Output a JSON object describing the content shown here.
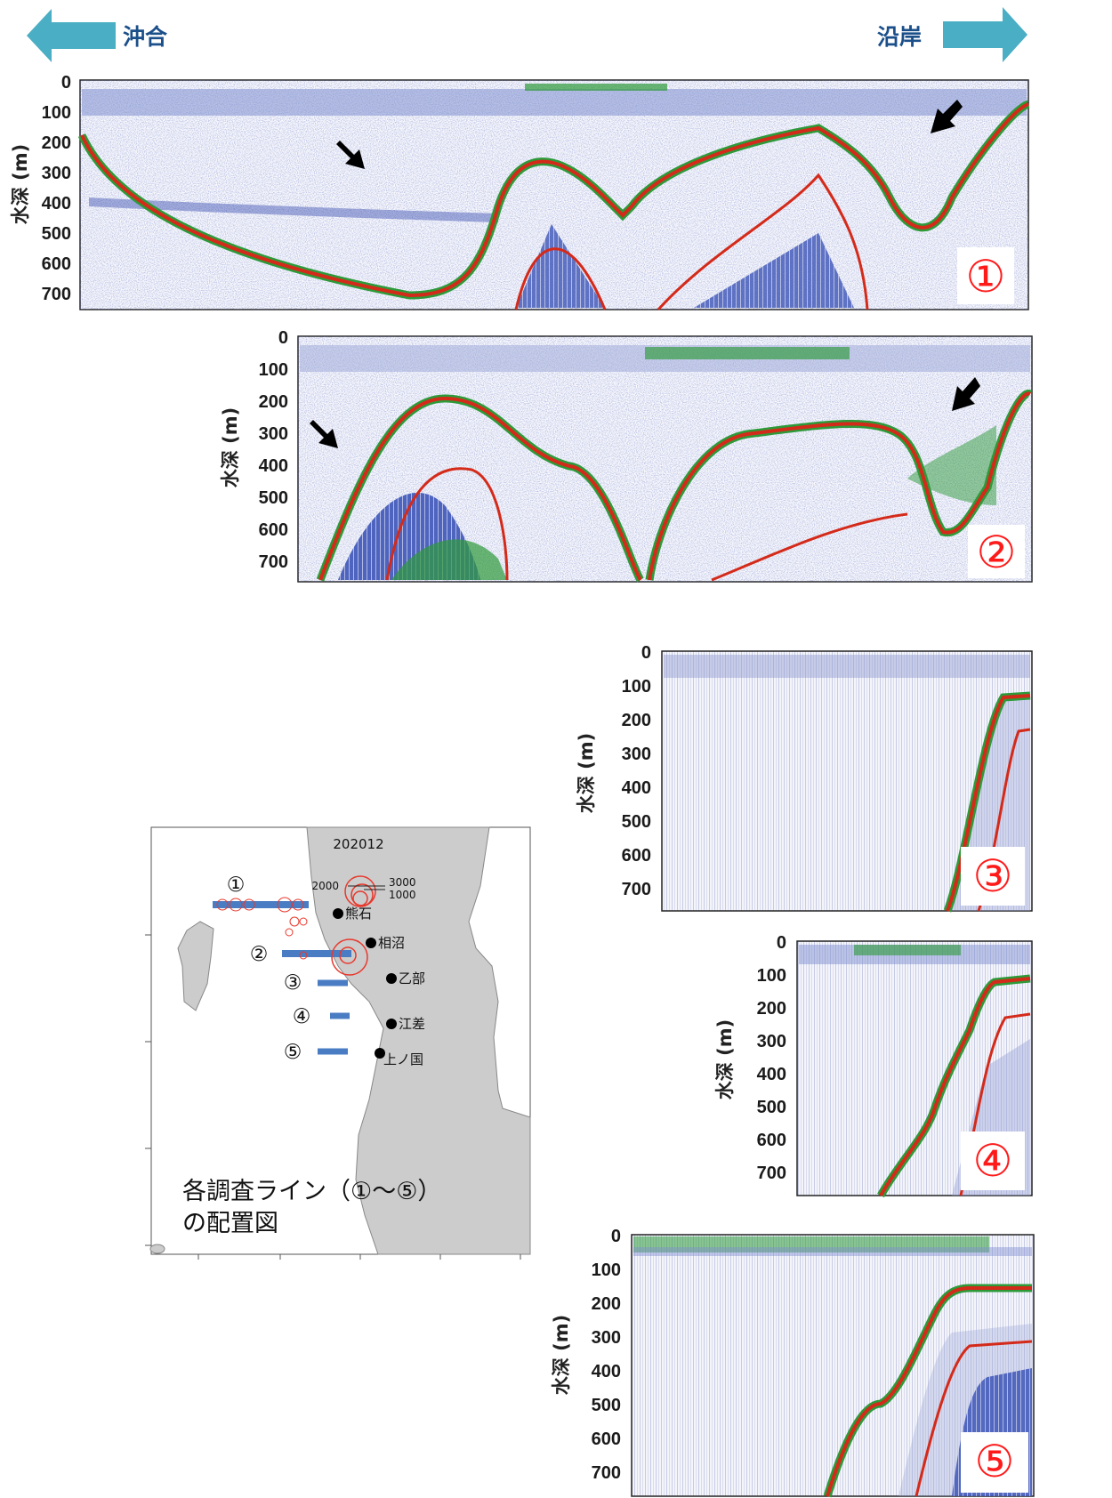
{
  "direction": {
    "offshore_label": "沖合",
    "coastal_label": "沿岸",
    "arrow_color": "#4aaec4"
  },
  "echograms": {
    "y_axis_label": "水深 (m)",
    "depth_ticks": [
      "0",
      "100",
      "200",
      "300",
      "400",
      "500",
      "600",
      "700"
    ],
    "panels": [
      {
        "id": "1",
        "label": "①"
      },
      {
        "id": "2",
        "label": "②"
      },
      {
        "id": "3",
        "label": "③"
      },
      {
        "id": "4",
        "label": "④"
      },
      {
        "id": "5",
        "label": "⑤"
      }
    ],
    "colors": {
      "noise": "#2a3f9e",
      "bottom_outer": "#2d9a3a",
      "bottom_core": "#d42a1a",
      "panel_number": "#ff1a1a"
    }
  },
  "map": {
    "title": "202012",
    "legend": {
      "left": "2000",
      "right_top": "3000",
      "right_bottom": "1000",
      "color": "#e8382c"
    },
    "line_labels": [
      "①",
      "②",
      "③",
      "④",
      "⑤"
    ],
    "ports": [
      "熊石",
      "相沼",
      "乙部",
      "江差",
      "上ノ国"
    ],
    "line_color": "#4a7cc4",
    "land_color": "#cccccc",
    "caption_line1": "各調査ライン（①〜⑤）",
    "caption_line2": "の配置図"
  }
}
